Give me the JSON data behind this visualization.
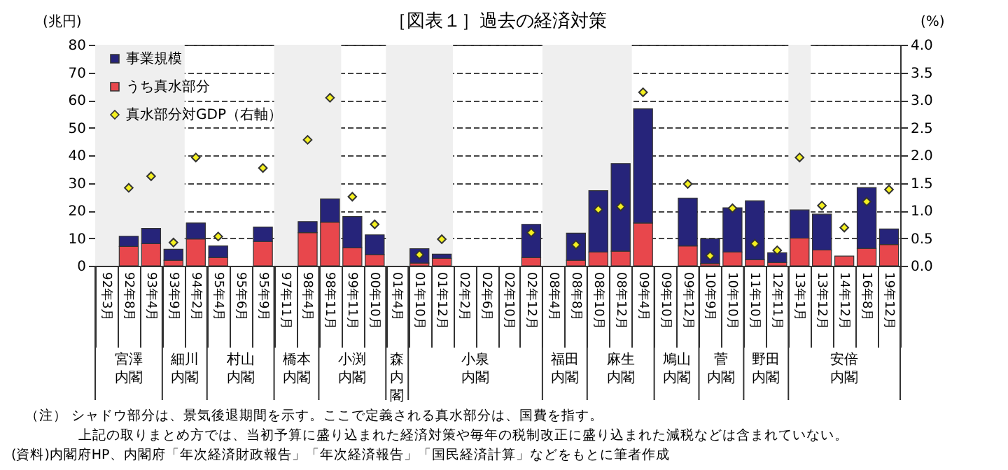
{
  "chart_data": {
    "type": "bar",
    "title": "［図表１］過去の経済対策",
    "ylabel": "(兆円)",
    "y2label": "(%)",
    "categories": [
      "92年3月",
      "92年8月",
      "93年4月",
      "93年9月",
      "94年2月",
      "95年4月",
      "95年6月",
      "95年9月",
      "97年11月",
      "98年4月",
      "98年11月",
      "99年11月",
      "00年10月",
      "01年4月",
      "01年10月",
      "01年12月",
      "02年2月",
      "02年6月",
      "02年10月",
      "02年12月",
      "08年4月",
      "08年8月",
      "08年10月",
      "08年12月",
      "09年4月",
      "09年10月",
      "09年12月",
      "10年9月",
      "10年10月",
      "11年10月",
      "12年11月",
      "13年1月",
      "13年12月",
      "14年12月",
      "16年8月",
      "19年12月"
    ],
    "stacked": true,
    "series": [
      {
        "name": "うち真水部分",
        "color": "#e8474c",
        "values": [
          null,
          7,
          8,
          2,
          9.7,
          3,
          null,
          8.8,
          null,
          12,
          15.8,
          6.5,
          4,
          null,
          1,
          2.7,
          null,
          null,
          null,
          3,
          null,
          2,
          5,
          5.3,
          15.5,
          null,
          7.2,
          0.8,
          5,
          2.2,
          1.2,
          10,
          5.7,
          3.5,
          6.3,
          7.7
        ]
      },
      {
        "name": "事業規模",
        "color": "#26247a",
        "values": [
          null,
          3.7,
          5.5,
          4,
          5.8,
          4.2,
          null,
          5.2,
          null,
          4,
          8.4,
          11.3,
          7.2,
          null,
          5.2,
          1.5,
          null,
          null,
          null,
          12,
          null,
          9.8,
          22.2,
          31.7,
          41.3,
          null,
          17.3,
          9,
          16,
          21.3,
          3.5,
          10.2,
          13,
          null,
          22,
          5.6
        ]
      },
      {
        "name": "真水部分対GDP（右軸）",
        "type": "scatter",
        "axis": "y2",
        "color": "#f4f020",
        "values": [
          null,
          1.41,
          1.62,
          0.42,
          1.96,
          0.53,
          null,
          1.77,
          null,
          2.28,
          3.04,
          1.25,
          0.75,
          null,
          0.2,
          0.48,
          null,
          null,
          null,
          0.6,
          null,
          0.38,
          1.02,
          1.07,
          3.14,
          null,
          1.48,
          0.18,
          1.04,
          0.4,
          0.28,
          1.96,
          1.09,
          0.69,
          1.16,
          1.38
        ]
      }
    ],
    "ylim": [
      0,
      80
    ],
    "yticks": [
      0,
      10,
      20,
      30,
      40,
      50,
      60,
      70,
      80
    ],
    "y2lim": [
      0,
      4
    ],
    "y2ticks": [
      {
        "value": 0,
        "label": "0.0"
      },
      0.5,
      {
        "value": 1,
        "label": "1.0"
      },
      1.5,
      {
        "value": 2,
        "label": "2.0"
      },
      2.5,
      {
        "value": 3,
        "label": "3.0"
      },
      3.5,
      {
        "value": 4,
        "label": "4.0"
      }
    ],
    "grid": "y",
    "legend": "top left",
    "marker": "diamond",
    "bands": [
      {
        "axis": "x",
        "from": "92年3月",
        "to": "93年9月",
        "color": "#efefef"
      },
      {
        "axis": "x",
        "from": "97年11月",
        "to": "98年11月",
        "color": "#efefef"
      },
      {
        "axis": "x",
        "from": "01年4月",
        "to": "01年12月",
        "color": "#efefef"
      },
      {
        "axis": "x",
        "from": "08年4月",
        "to": "08年12月",
        "color": "#efefef"
      },
      {
        "axis": "x",
        "from": "13年1月",
        "to": "13年1月",
        "color": "#efefef"
      }
    ],
    "annotations": [
      "宮澤内閣",
      "細川内閣",
      "村山内閣",
      "橋本内閣",
      "小渕内閣",
      "森内閣",
      "小泉内閣",
      "福田内閣",
      "麻生内閣",
      "鳩山内閣",
      "菅内閣",
      "野田内閣",
      "安倍内閣",
      "（注）  シャドウ部分は、景気後退期間を示す。ここで定義される真水部分は、国費を指す。",
      "上記の取りまとめ方では、当初予算に盛り込まれた経済対策や毎年の税制改正に盛り込まれた減税などは含まれていない。",
      "(資料)内閣府HP、内閣府「年次経済財政報告」「年次経済報告」「国民経済計算」などをもとに筆者作成"
    ]
  }
}
